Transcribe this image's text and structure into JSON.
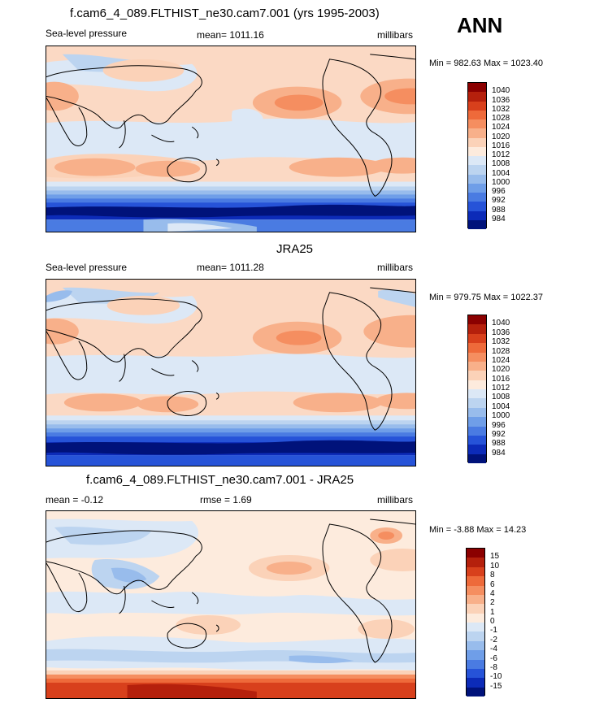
{
  "season": "ANN",
  "panels": [
    {
      "title": "f.cam6_4_089.FLTHIST_ne30.cam7.001 (yrs 1995-2003)",
      "left_label": "Sea-level pressure",
      "center_label": "mean= 1011.16",
      "right_label": "millibars",
      "minmax": "Min = 982.63 Max = 1023.40",
      "colorbar_labels": [
        "1040",
        "1036",
        "1032",
        "1028",
        "1024",
        "1020",
        "1016",
        "1012",
        "1008",
        "1004",
        "1000",
        "996",
        "992",
        "988",
        "984"
      ],
      "colors": [
        "#8b0000",
        "#b5200c",
        "#d8401c",
        "#ee6a3a",
        "#f58e60",
        "#f8b08a",
        "#fbd2b8",
        "#fdebdd",
        "#dce8f6",
        "#bcd4f0",
        "#98bcec",
        "#6f9ee8",
        "#4a7be2",
        "#2653d8",
        "#0c2bb8",
        "#00127a"
      ]
    },
    {
      "title": "JRA25",
      "left_label": "Sea-level pressure",
      "center_label": "mean= 1011.28",
      "right_label": "millibars",
      "minmax": "Min = 979.75 Max = 1022.37",
      "colorbar_labels": [
        "1040",
        "1036",
        "1032",
        "1028",
        "1024",
        "1020",
        "1016",
        "1012",
        "1008",
        "1004",
        "1000",
        "996",
        "992",
        "988",
        "984"
      ],
      "colors": [
        "#8b0000",
        "#b5200c",
        "#d8401c",
        "#ee6a3a",
        "#f58e60",
        "#f8b08a",
        "#fbd2b8",
        "#fdebdd",
        "#dce8f6",
        "#bcd4f0",
        "#98bcec",
        "#6f9ee8",
        "#4a7be2",
        "#2653d8",
        "#0c2bb8",
        "#00127a"
      ]
    },
    {
      "title": "f.cam6_4_089.FLTHIST_ne30.cam7.001 - JRA25",
      "left_label": "mean =  -0.12",
      "center_label": "rmse =   1.69",
      "right_label": "millibars",
      "minmax": "Min =  -3.88 Max =  14.23",
      "colorbar_labels": [
        "15",
        "10",
        "8",
        "6",
        "4",
        "2",
        "1",
        "0",
        "-1",
        "-2",
        "-4",
        "-6",
        "-8",
        "-10",
        "-15"
      ],
      "colors": [
        "#8b0000",
        "#b5200c",
        "#d8401c",
        "#ee6a3a",
        "#f58e60",
        "#f8b08a",
        "#fbd2b8",
        "#fdebdd",
        "#dce8f6",
        "#bcd4f0",
        "#98bcec",
        "#6f9ee8",
        "#4a7be2",
        "#2653d8",
        "#0c2bb8",
        "#00127a"
      ]
    }
  ],
  "chart_data": {
    "type": "heatmap",
    "title": "ANN",
    "variable": "Sea-level pressure",
    "units": "millibars",
    "panels": [
      {
        "name": "f.cam6_4_089.FLTHIST_ne30.cam7.001 (yrs 1995-2003)",
        "mean": 1011.16,
        "min": 982.63,
        "max": 1023.4,
        "levels": [
          984,
          988,
          992,
          996,
          1000,
          1004,
          1008,
          1012,
          1016,
          1020,
          1024,
          1028,
          1032,
          1036,
          1040
        ]
      },
      {
        "name": "JRA25",
        "mean": 1011.28,
        "min": 979.75,
        "max": 1022.37,
        "levels": [
          984,
          988,
          992,
          996,
          1000,
          1004,
          1008,
          1012,
          1016,
          1020,
          1024,
          1028,
          1032,
          1036,
          1040
        ]
      },
      {
        "name": "f.cam6_4_089.FLTHIST_ne30.cam7.001 - JRA25",
        "mean": -0.12,
        "rmse": 1.69,
        "min": -3.88,
        "max": 14.23,
        "levels": [
          -15,
          -10,
          -8,
          -6,
          -4,
          -2,
          -1,
          0,
          1,
          2,
          4,
          6,
          8,
          10,
          15
        ]
      }
    ]
  }
}
